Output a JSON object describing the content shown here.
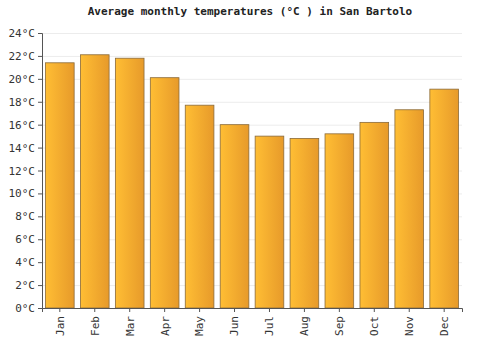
{
  "chart_data": {
    "type": "bar",
    "title": "Average monthly temperatures (°C ) in San Bartolo",
    "categories": [
      "Jan",
      "Feb",
      "Mar",
      "Apr",
      "May",
      "Jun",
      "Jul",
      "Aug",
      "Sep",
      "Oct",
      "Nov",
      "Dec"
    ],
    "values": [
      21.4,
      22.1,
      21.8,
      20.1,
      17.7,
      16.0,
      15.0,
      14.8,
      15.2,
      16.2,
      17.3,
      19.1
    ],
    "color": "#fca82e",
    "ylim": [
      0,
      24
    ],
    "yticks": [
      {
        "value": 0,
        "label": "0°C"
      },
      {
        "value": 2,
        "label": "2°C"
      },
      {
        "value": 4,
        "label": "4°C"
      },
      {
        "value": 6,
        "label": "6°C"
      },
      {
        "value": 8,
        "label": "8°C"
      },
      {
        "value": 10,
        "label": "10°C"
      },
      {
        "value": 12,
        "label": "12°C"
      },
      {
        "value": 14,
        "label": "14°C"
      },
      {
        "value": 16,
        "label": "16°C"
      },
      {
        "value": 18,
        "label": "18°C"
      },
      {
        "value": 20,
        "label": "20°C"
      },
      {
        "value": 22,
        "label": "22°C"
      },
      {
        "value": 24,
        "label": "24°C"
      }
    ],
    "grid": true
  }
}
